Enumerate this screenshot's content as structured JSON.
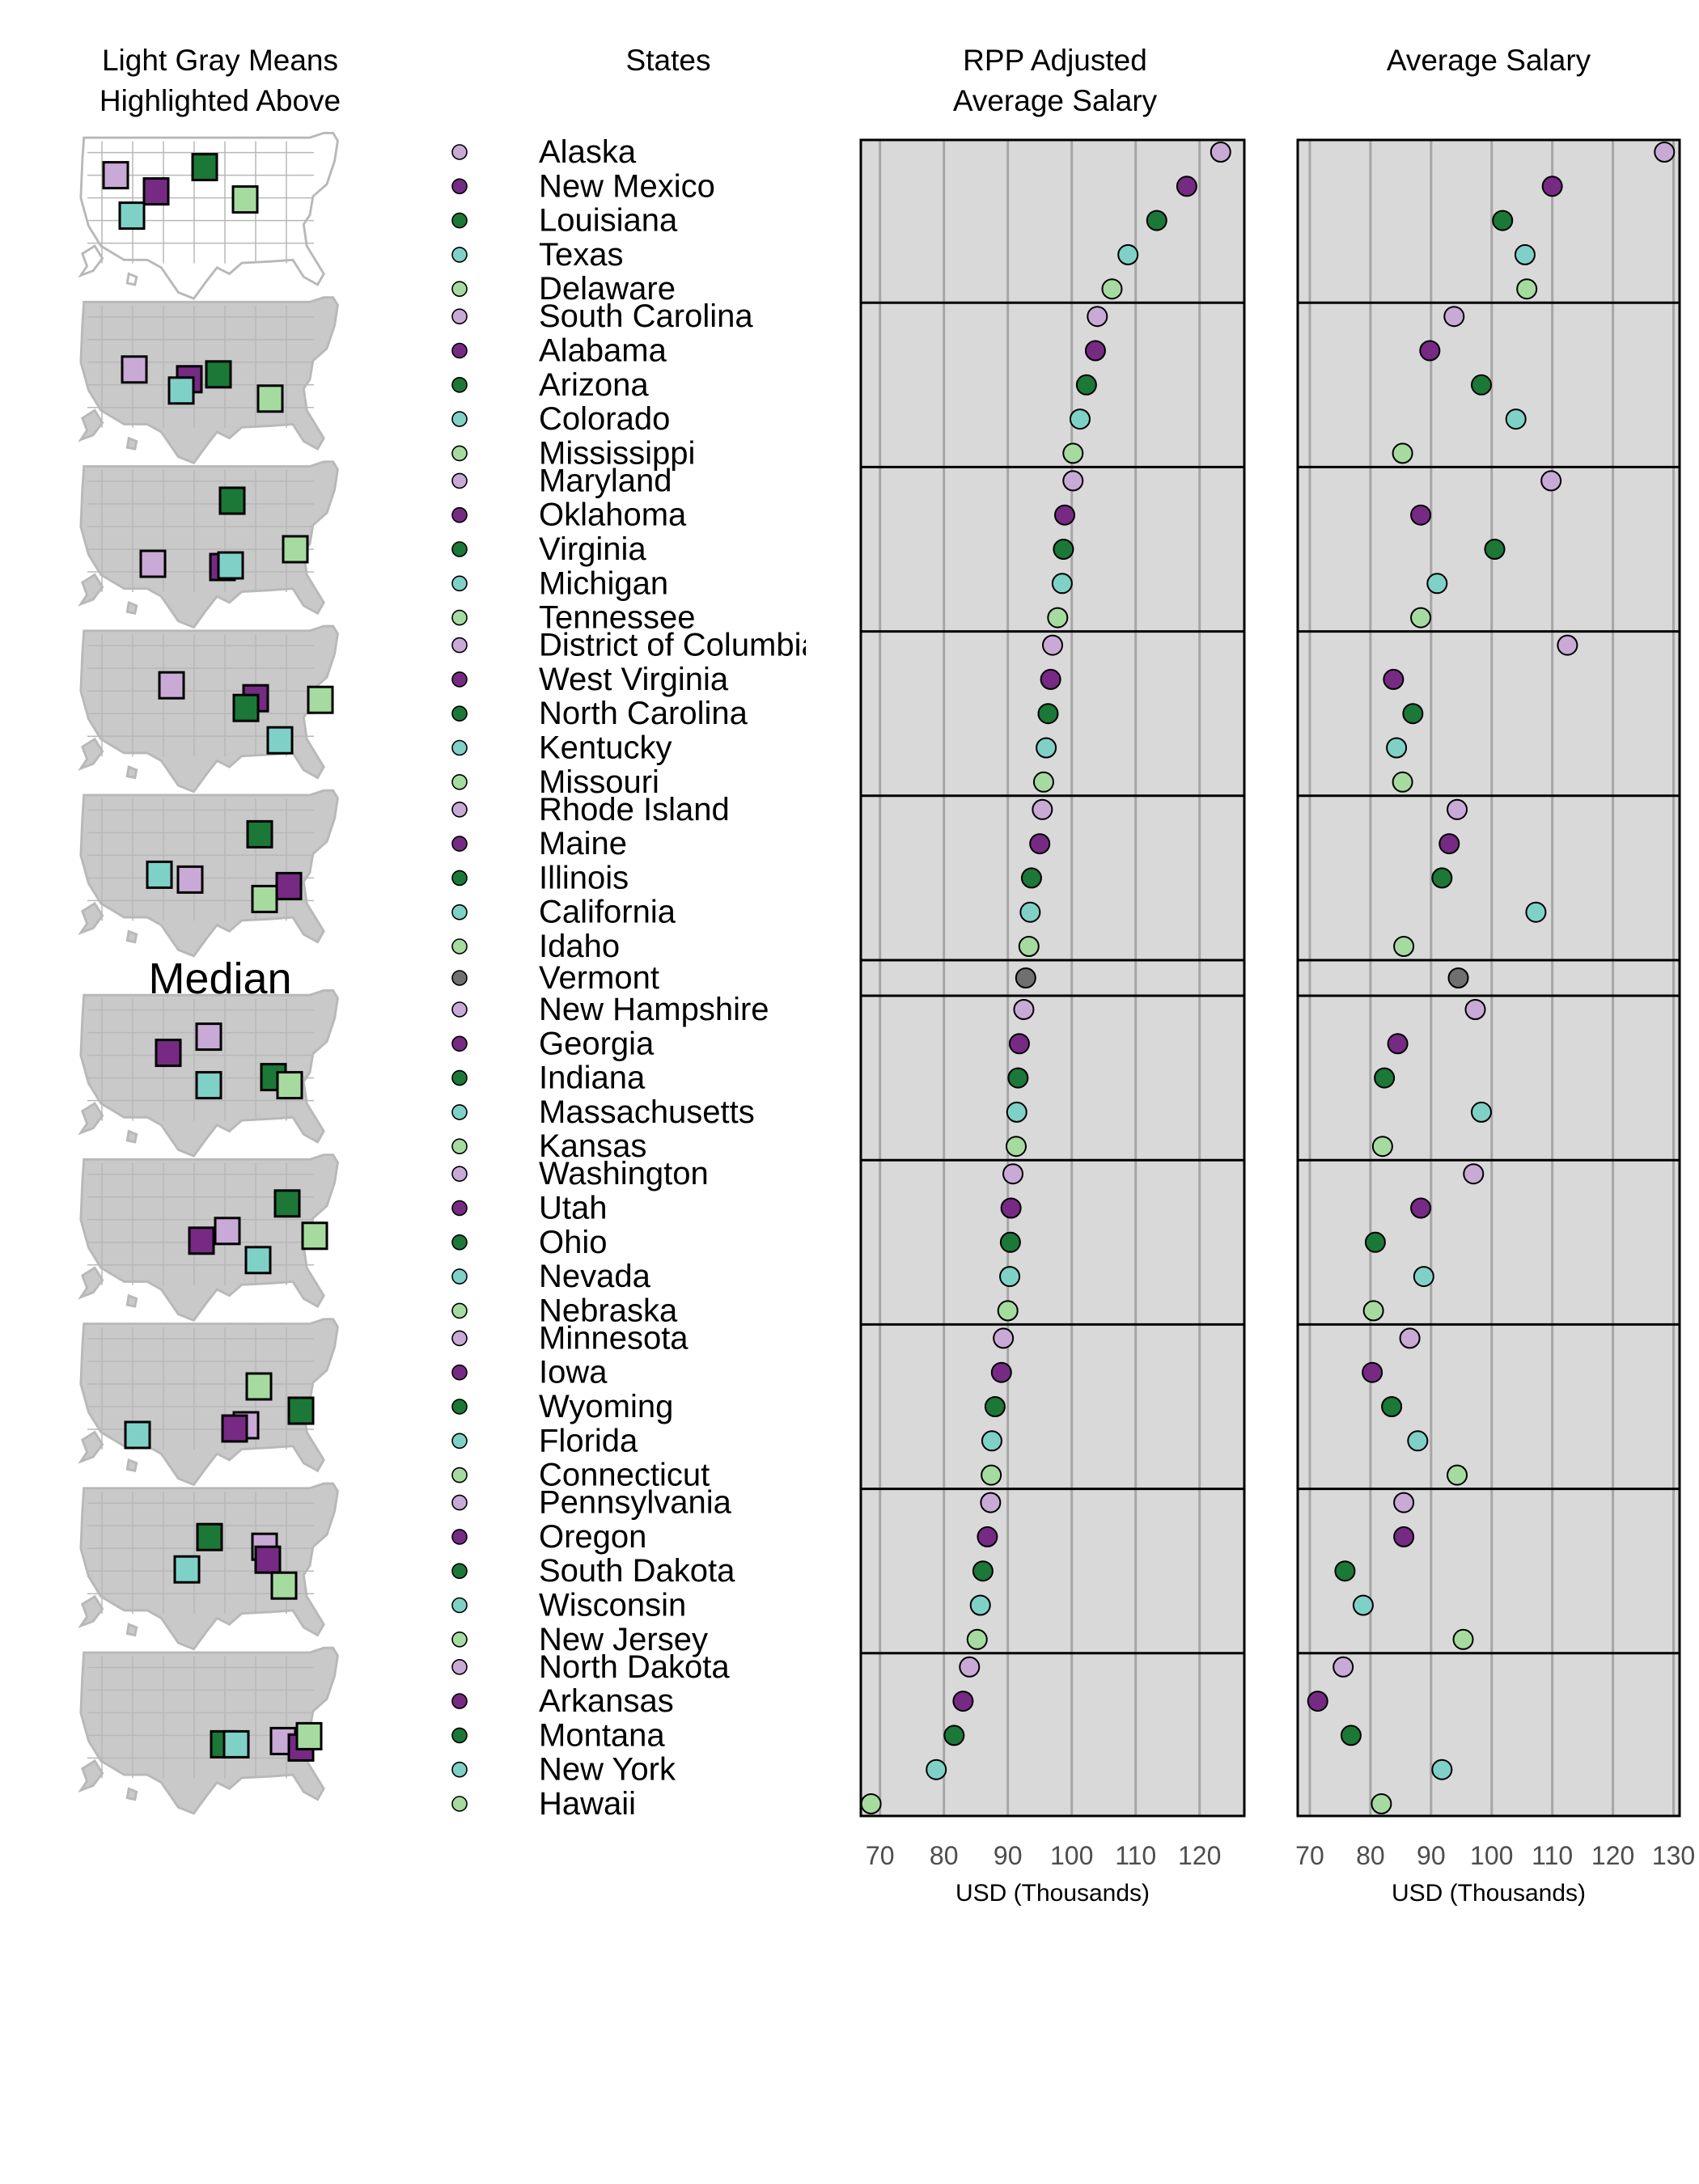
{
  "headers": {
    "maps": "Light Gray Means\nHighlighted Above",
    "states": "States",
    "rpp": "RPP Adjusted\nAverage Salary",
    "avg": "Average Salary"
  },
  "median_label": "Median",
  "colors": {
    "c1": "#c9a9d6",
    "c2": "#762a83",
    "c3": "#1b7837",
    "c4": "#7fd1c7",
    "c5": "#a6dba0",
    "median": "#707070",
    "panel_bg": "#d9d9d9",
    "map_highlight": "#c9c9c9",
    "map_base": "#ffffff"
  },
  "chart_data": [
    {
      "type": "scatter",
      "title": "RPP Adjusted\nAverage Salary",
      "xlabel": "USD (Thousands)",
      "xlim": [
        67,
        127
      ],
      "xticks": [
        70,
        80,
        90,
        100,
        110,
        120
      ],
      "grid": true,
      "groups": [
        {
          "states": [
            "Alaska",
            "New Mexico",
            "Louisiana",
            "Texas",
            "Delaware"
          ],
          "values": [
            123.3,
            118.0,
            113.3,
            108.8,
            106.3
          ]
        },
        {
          "states": [
            "South Carolina",
            "Alabama",
            "Arizona",
            "Colorado",
            "Mississippi"
          ],
          "values": [
            104.0,
            103.7,
            102.3,
            101.3,
            100.2
          ]
        },
        {
          "states": [
            "Maryland",
            "Oklahoma",
            "Virginia",
            "Michigan",
            "Tennessee"
          ],
          "values": [
            100.2,
            98.9,
            98.7,
            98.5,
            97.8
          ]
        },
        {
          "states": [
            "District of Columbia",
            "West Virginia",
            "North Carolina",
            "Kentucky",
            "Missouri"
          ],
          "values": [
            97.0,
            96.7,
            96.3,
            96.0,
            95.6
          ]
        },
        {
          "states": [
            "Rhode Island",
            "Maine",
            "Illinois",
            "California",
            "Idaho"
          ],
          "values": [
            95.4,
            95.0,
            93.7,
            93.5,
            93.3
          ]
        },
        {
          "states": [
            "Vermont"
          ],
          "values": [
            92.8
          ],
          "median": true
        },
        {
          "states": [
            "New Hampshire",
            "Georgia",
            "Indiana",
            "Massachusetts",
            "Kansas"
          ],
          "values": [
            92.5,
            91.8,
            91.6,
            91.4,
            91.3
          ]
        },
        {
          "states": [
            "Washington",
            "Utah",
            "Ohio",
            "Nevada",
            "Nebraska"
          ],
          "values": [
            90.8,
            90.5,
            90.4,
            90.3,
            90.0
          ]
        },
        {
          "states": [
            "Minnesota",
            "Iowa",
            "Wyoming",
            "Florida",
            "Connecticut"
          ],
          "values": [
            89.3,
            89.0,
            88.0,
            87.5,
            87.4
          ]
        },
        {
          "states": [
            "Pennsylvania",
            "Oregon",
            "South Dakota",
            "Wisconsin",
            "New Jersey"
          ],
          "values": [
            87.3,
            86.8,
            86.1,
            85.7,
            85.2
          ]
        },
        {
          "states": [
            "North Dakota",
            "Arkansas",
            "Montana",
            "New York",
            "Hawaii"
          ],
          "values": [
            84.0,
            83.0,
            81.6,
            78.8,
            68.6
          ]
        }
      ]
    },
    {
      "type": "scatter",
      "title": "Average Salary",
      "xlabel": "USD (Thousands)",
      "xlim": [
        68,
        131
      ],
      "xticks": [
        70,
        80,
        90,
        100,
        110,
        120,
        130
      ],
      "grid": true,
      "groups": [
        {
          "states": [
            "Alaska",
            "New Mexico",
            "Louisiana",
            "Texas",
            "Delaware"
          ],
          "values": [
            128.5,
            110.0,
            101.8,
            105.5,
            105.8
          ]
        },
        {
          "states": [
            "South Carolina",
            "Alabama",
            "Arizona",
            "Colorado",
            "Mississippi"
          ],
          "values": [
            93.8,
            89.8,
            98.3,
            104.0,
            85.3
          ]
        },
        {
          "states": [
            "Maryland",
            "Oklahoma",
            "Virginia",
            "Michigan",
            "Tennessee"
          ],
          "values": [
            109.8,
            88.3,
            100.5,
            91.0,
            88.3
          ]
        },
        {
          "states": [
            "District of Columbia",
            "West Virginia",
            "North Carolina",
            "Kentucky",
            "Missouri"
          ],
          "values": [
            112.5,
            83.8,
            87.0,
            84.3,
            85.3
          ]
        },
        {
          "states": [
            "Rhode Island",
            "Maine",
            "Illinois",
            "California",
            "Idaho"
          ],
          "values": [
            94.3,
            93.0,
            91.8,
            107.3,
            85.5
          ]
        },
        {
          "states": [
            "Vermont"
          ],
          "values": [
            94.5
          ],
          "median": true
        },
        {
          "states": [
            "New Hampshire",
            "Georgia",
            "Indiana",
            "Massachusetts",
            "Kansas"
          ],
          "values": [
            97.3,
            84.5,
            82.3,
            98.3,
            82.0
          ]
        },
        {
          "states": [
            "Washington",
            "Utah",
            "Ohio",
            "Nevada",
            "Nebraska"
          ],
          "values": [
            97.0,
            88.3,
            80.8,
            88.8,
            80.5
          ]
        },
        {
          "states": [
            "Minnesota",
            "Iowa",
            "Wyoming",
            "Florida",
            "Connecticut"
          ],
          "values": [
            86.5,
            80.3,
            83.5,
            87.8,
            94.3
          ]
        },
        {
          "states": [
            "Pennsylvania",
            "Oregon",
            "South Dakota",
            "Wisconsin",
            "New Jersey"
          ],
          "values": [
            85.5,
            85.5,
            75.8,
            78.8,
            95.3
          ]
        },
        {
          "states": [
            "North Dakota",
            "Arkansas",
            "Montana",
            "New York",
            "Hawaii"
          ],
          "values": [
            75.5,
            71.3,
            76.8,
            91.8,
            81.8
          ]
        }
      ]
    }
  ]
}
